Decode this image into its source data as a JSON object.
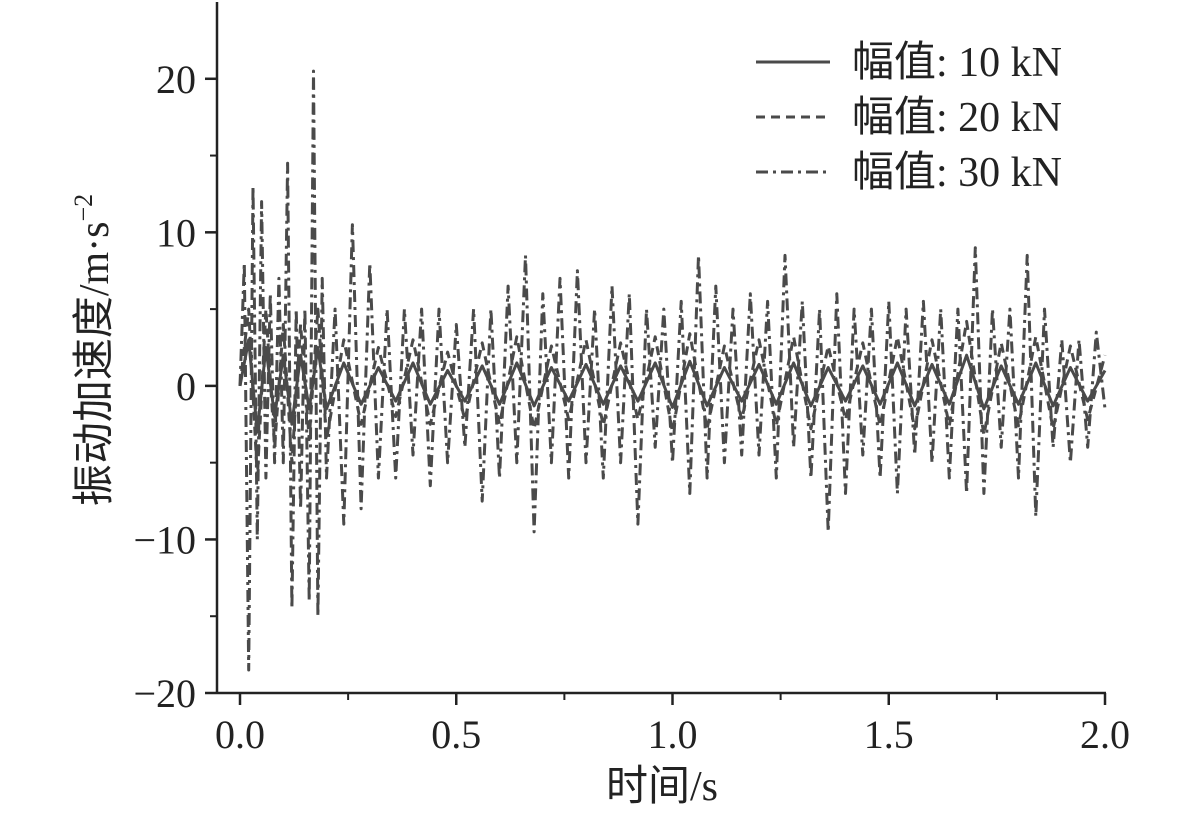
{
  "chart_data": {
    "type": "line",
    "xlabel": "时间/s",
    "ylabel": "振动加速度/m·s",
    "ylabel_superscript": "−2",
    "xlim": [
      0,
      2
    ],
    "ylim": [
      -20,
      25
    ],
    "x_ticks": [
      0,
      0.5,
      1,
      1.5,
      2
    ],
    "x_tick_labels": [
      "0.0",
      "0.5",
      "1.0",
      "1.5",
      "2.0"
    ],
    "y_ticks": [
      -20,
      -10,
      0,
      10,
      20
    ],
    "y_tick_labels": [
      "−20",
      "−10",
      "0",
      "10",
      "20"
    ],
    "grid": false,
    "legend_position": "top-right",
    "line_color": "#4a4a4a",
    "series": [
      {
        "name": "幅值: 10 kN",
        "style": "solid",
        "x": [
          0.0,
          0.02,
          0.04,
          0.06,
          0.08,
          0.1,
          0.12,
          0.14,
          0.16,
          0.18,
          0.2,
          0.24,
          0.28,
          0.32,
          0.36,
          0.4,
          0.44,
          0.48,
          0.52,
          0.56,
          0.6,
          0.64,
          0.68,
          0.72,
          0.76,
          0.8,
          0.84,
          0.88,
          0.92,
          0.96,
          1.0,
          1.04,
          1.08,
          1.12,
          1.16,
          1.2,
          1.24,
          1.28,
          1.32,
          1.36,
          1.4,
          1.44,
          1.48,
          1.52,
          1.56,
          1.6,
          1.64,
          1.68,
          1.72,
          1.76,
          1.8,
          1.84,
          1.88,
          1.92,
          1.96,
          2.0
        ],
        "y": [
          0,
          3,
          -3,
          2.5,
          -2,
          2,
          -2.5,
          2,
          -1.5,
          2.5,
          -1.5,
          1.5,
          -1.2,
          1.2,
          -1,
          1.5,
          -1.2,
          1,
          -1,
          1.3,
          -1.2,
          1.5,
          -1.3,
          1.2,
          -1,
          1.4,
          -1.2,
          1.3,
          -1,
          1.5,
          -1.4,
          1.6,
          -1.3,
          1.2,
          -1,
          1.4,
          -1.2,
          1.5,
          -1.3,
          1.2,
          -1,
          1.3,
          -1.2,
          1.5,
          -1.3,
          1.4,
          -1.2,
          2,
          -1.5,
          1.3,
          -1.2,
          1.5,
          -1.3,
          1.2,
          -1,
          1
        ]
      },
      {
        "name": "幅值: 20 kN",
        "style": "dashed",
        "x": [
          0.0,
          0.02,
          0.04,
          0.06,
          0.08,
          0.1,
          0.12,
          0.14,
          0.16,
          0.18,
          0.2,
          0.24,
          0.28,
          0.32,
          0.36,
          0.4,
          0.44,
          0.48,
          0.52,
          0.56,
          0.6,
          0.64,
          0.68,
          0.72,
          0.76,
          0.8,
          0.84,
          0.88,
          0.92,
          0.96,
          1.0,
          1.04,
          1.08,
          1.12,
          1.16,
          1.2,
          1.24,
          1.28,
          1.32,
          1.36,
          1.4,
          1.44,
          1.48,
          1.52,
          1.56,
          1.6,
          1.64,
          1.68,
          1.72,
          1.76,
          1.8,
          1.84,
          1.88,
          1.92,
          1.96,
          2.0
        ],
        "y": [
          0,
          5,
          -6,
          5,
          -4,
          4,
          -5,
          4,
          -3.5,
          5,
          -3.5,
          3,
          -2.5,
          2.5,
          -2,
          3,
          -2.5,
          2.2,
          -2.2,
          2.8,
          -2.5,
          3.2,
          -2.8,
          2.6,
          -2.2,
          3,
          -2.6,
          2.8,
          -2.2,
          3.2,
          -3,
          3.4,
          -2.8,
          2.6,
          -2.2,
          3,
          -2.6,
          3.2,
          -2.8,
          2.6,
          -2.2,
          2.8,
          -2.6,
          3.2,
          -2.8,
          3,
          -2.6,
          4.2,
          -3.2,
          2.8,
          -2.6,
          3.2,
          -2.8,
          2.6,
          -2.2,
          2
        ]
      },
      {
        "name": "幅值: 30 kN",
        "style": "dashdot",
        "x": [
          0.0,
          0.01,
          0.02,
          0.03,
          0.04,
          0.05,
          0.06,
          0.07,
          0.08,
          0.09,
          0.1,
          0.11,
          0.12,
          0.13,
          0.14,
          0.15,
          0.16,
          0.17,
          0.18,
          0.19,
          0.2,
          0.22,
          0.24,
          0.26,
          0.28,
          0.3,
          0.32,
          0.34,
          0.36,
          0.38,
          0.4,
          0.42,
          0.44,
          0.46,
          0.48,
          0.5,
          0.52,
          0.54,
          0.56,
          0.58,
          0.6,
          0.62,
          0.64,
          0.66,
          0.68,
          0.7,
          0.72,
          0.74,
          0.76,
          0.78,
          0.8,
          0.82,
          0.84,
          0.86,
          0.88,
          0.9,
          0.92,
          0.94,
          0.96,
          0.98,
          1.0,
          1.02,
          1.04,
          1.06,
          1.08,
          1.1,
          1.12,
          1.14,
          1.16,
          1.18,
          1.2,
          1.22,
          1.24,
          1.26,
          1.28,
          1.3,
          1.32,
          1.34,
          1.36,
          1.38,
          1.4,
          1.42,
          1.44,
          1.46,
          1.48,
          1.5,
          1.52,
          1.54,
          1.56,
          1.58,
          1.6,
          1.62,
          1.64,
          1.66,
          1.68,
          1.7,
          1.72,
          1.74,
          1.76,
          1.78,
          1.8,
          1.82,
          1.84,
          1.86,
          1.88,
          1.9,
          1.92,
          1.94,
          1.96,
          1.98,
          2.0
        ],
        "y": [
          0,
          8,
          -18.5,
          13,
          -10,
          12,
          -6,
          6,
          -5,
          7,
          -5,
          14.5,
          -14.5,
          5,
          -8,
          5,
          -14,
          20.5,
          -15,
          7,
          -6,
          5,
          -9,
          10.5,
          -8,
          8,
          -6,
          5,
          -6,
          5,
          -4.5,
          5,
          -6.5,
          5,
          -5,
          4,
          -4,
          5,
          -7.5,
          5,
          -6,
          6.5,
          -5,
          8.5,
          -9.5,
          6,
          -5,
          7,
          -6,
          7.5,
          -5,
          5,
          -6,
          6.5,
          -5,
          6,
          -9,
          5,
          -4,
          5,
          -5,
          5.5,
          -7,
          8.5,
          -6,
          6.5,
          -5,
          5,
          -4.5,
          6,
          -4.5,
          5.5,
          -6,
          8.5,
          -4,
          5.5,
          -6,
          5,
          -9.5,
          6,
          -7,
          5,
          -4.5,
          5,
          -6,
          5.5,
          -7,
          5,
          -4.5,
          5.5,
          -5,
          5,
          -6,
          5,
          -7,
          9,
          -7,
          5,
          -4,
          5,
          -6,
          8.5,
          -8.5,
          5,
          -4,
          3,
          -5,
          3,
          -4,
          3.5,
          -1.5
        ]
      }
    ]
  }
}
